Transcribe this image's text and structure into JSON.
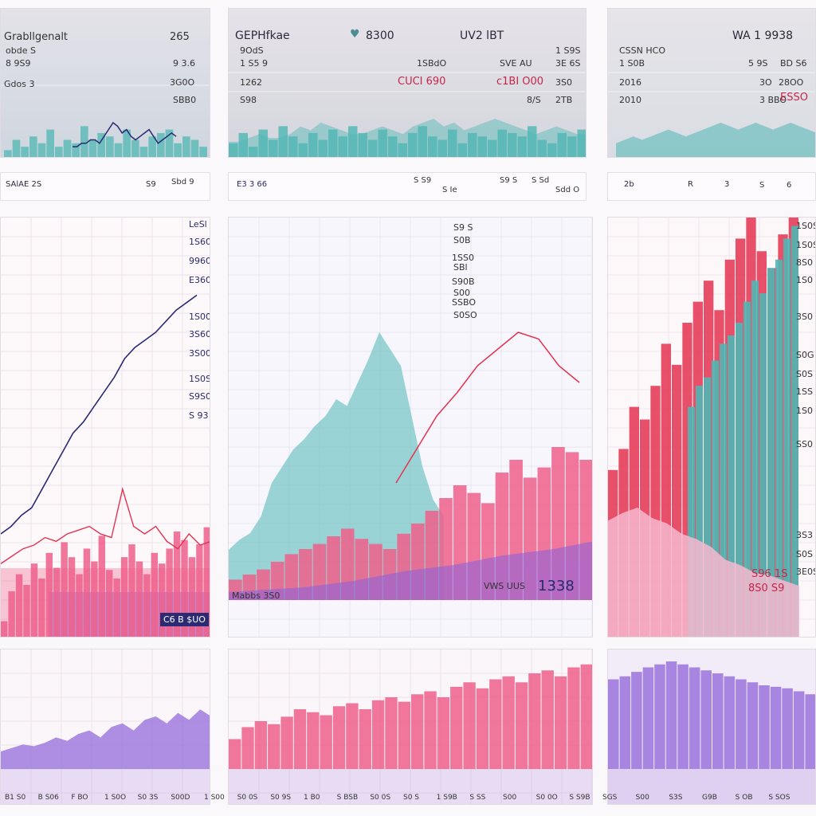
{
  "colors": {
    "teal": "#4fb7b4",
    "pink": "#ef5f8a",
    "red": "#e43350",
    "navy": "#2b2a72",
    "purple": "#8d63d8",
    "lavender": "#c5a8e8",
    "light_pink": "#f6b9cf"
  },
  "top_panels": [
    {
      "labels": [
        "Grabllgenalt",
        "265",
        "obde S",
        "8 9S9",
        "9 3.6",
        "Gdos 3",
        "3G0O",
        "SBB0"
      ]
    },
    {
      "labels": [
        "GEPHfkae",
        "8300",
        "UV2 lBT",
        "9OdS",
        "1 S5 9",
        "1 S9S",
        "1SBdO",
        "SVE AU",
        "3E 6S",
        "1262",
        "CUCI 690",
        "c1BI O00",
        "3S0",
        "S98",
        "8/S",
        "2TB"
      ]
    },
    {
      "labels": [
        "WA 1 9938",
        "CSSN HCO",
        "5 9S",
        "BD S6",
        "1 S0B",
        "3O",
        "28OO",
        "2016",
        "3 BBO",
        "2010",
        "ESSO"
      ]
    }
  ],
  "strips": [
    {
      "labels": [
        "SAlAE 2S",
        "S9",
        "Sbd 9"
      ]
    },
    {
      "labels": [
        "E3 3 66",
        "S S9",
        "S Ie",
        "S9 S",
        "S Sd",
        "Sdd O"
      ]
    },
    {
      "labels": [
        "2b",
        "R",
        "3",
        "S",
        "6"
      ]
    }
  ],
  "middle_panels": [
    {
      "labels": [
        "LeSl",
        "1S60",
        "9960",
        "E360",
        "1S00",
        "3S60",
        "3S00",
        "1S0S",
        "S9S0",
        "S 93"
      ],
      "footer": "C6 B $UO"
    },
    {
      "labels": [
        "S9 S",
        "S0B",
        "1SS0",
        "SBl",
        "S90B",
        "S00",
        "SSBO",
        "S0SO"
      ],
      "footer_left": "Mabbs 3S0",
      "footer_mid": "VWS UUS",
      "footer_big": "1338"
    },
    {
      "labels": [
        "1S0S",
        "1S0S",
        "8S0",
        "1S0",
        "3S0",
        "S0G",
        "S0S",
        "1SS",
        "1S0",
        "SS0",
        "3S3",
        "S0S",
        "3E0S"
      ],
      "footer": "S96 1S",
      "footer2": "8S0 S9"
    }
  ],
  "bottom_axis": [
    "B1 S0",
    "B S06",
    "F BO",
    "1 S0O",
    "S0 3S",
    "S00D",
    "1 S00",
    "S0 0S",
    "S0 9S",
    "1 B0",
    "S BSB",
    "S0 0S",
    "S0 S",
    "1 S9B",
    "S SS",
    "S00",
    "S0 0O",
    "S S9B",
    "SGS",
    "S00",
    "S3S",
    "G9B",
    "S OB",
    "S SOS"
  ],
  "chart_data": [
    {
      "type": "area",
      "panel": "top-left",
      "series": [
        {
          "values": [
            2,
            5,
            3,
            6,
            4,
            8,
            3,
            5,
            4,
            9,
            5,
            7,
            6,
            4,
            8,
            5,
            3,
            6,
            7,
            8,
            4,
            6,
            5,
            3
          ]
        },
        {
          "values": [
            3,
            3,
            4,
            4,
            5,
            5,
            4,
            6,
            8,
            10,
            9,
            7,
            8,
            6,
            5,
            6,
            7,
            8,
            6,
            4,
            5,
            6,
            7,
            6
          ]
        }
      ],
      "ylim": [
        0,
        20
      ]
    },
    {
      "type": "area",
      "panel": "top-middle",
      "series": [
        {
          "values": [
            4,
            7,
            3,
            8,
            5,
            9,
            6,
            4,
            7,
            5,
            8,
            6,
            9,
            7,
            5,
            8,
            6,
            4,
            7,
            9,
            6,
            5,
            8,
            4,
            7,
            6,
            5,
            8,
            7,
            6,
            9,
            5,
            4,
            7,
            6,
            8
          ]
        },
        {
          "values": [
            4,
            4,
            5,
            6,
            5,
            5,
            6,
            8,
            7,
            9,
            8,
            7,
            6,
            6,
            7,
            8,
            7,
            6,
            8,
            9,
            10,
            8,
            9,
            7,
            8,
            9,
            10,
            9,
            8,
            7,
            6,
            7,
            8,
            7,
            6,
            6
          ]
        }
      ],
      "ylim": [
        0,
        20
      ]
    },
    {
      "type": "area",
      "panel": "top-right",
      "series": [
        {
          "values": [
            4,
            5,
            6,
            5,
            6,
            7,
            8,
            7,
            6,
            7,
            8,
            9,
            10,
            9,
            8,
            9,
            10,
            9,
            8,
            9,
            10,
            9,
            8,
            7
          ]
        }
      ],
      "ylim": [
        0,
        20
      ]
    },
    {
      "type": "bar",
      "panel": "middle-left",
      "series": [
        {
          "name": "pink",
          "values": [
            8,
            22,
            30,
            25,
            35,
            28,
            40,
            33,
            45,
            38,
            30,
            42,
            36,
            48,
            32,
            28,
            38,
            44,
            36,
            30,
            40,
            35,
            42,
            50,
            46,
            38,
            44,
            52
          ]
        },
        {
          "name": "navy-line",
          "values": [
            28,
            30,
            33,
            35,
            40,
            45,
            50,
            55,
            58,
            62,
            66,
            70,
            75,
            78,
            80,
            82,
            85,
            88,
            90,
            92
          ]
        },
        {
          "name": "red-line",
          "values": [
            20,
            22,
            24,
            25,
            27,
            26,
            28,
            29,
            30,
            28,
            27,
            40,
            30,
            28,
            30,
            26,
            24,
            28,
            25,
            26
          ]
        }
      ],
      "ylim": [
        0,
        100
      ]
    },
    {
      "type": "area",
      "panel": "middle-center",
      "series": [
        {
          "name": "teal",
          "values": [
            15,
            18,
            20,
            25,
            35,
            40,
            45,
            48,
            52,
            55,
            60,
            58,
            65,
            72,
            80,
            75,
            70,
            55,
            40,
            30,
            25
          ]
        },
        {
          "name": "pink",
          "values": [
            8,
            10,
            12,
            15,
            18,
            20,
            22,
            25,
            28,
            24,
            22,
            20,
            26,
            30,
            35,
            40,
            45,
            42,
            38,
            50,
            55,
            48,
            52,
            60,
            58,
            55
          ]
        },
        {
          "name": "purple",
          "values": [
            5,
            6,
            7,
            8,
            10,
            12,
            15,
            18,
            20,
            22,
            25,
            28,
            30,
            32,
            35,
            38
          ]
        },
        {
          "name": "red-line",
          "values": [
            35,
            45,
            55,
            62,
            70,
            75,
            80,
            78,
            70,
            65
          ]
        }
      ],
      "ylim": [
        0,
        100
      ]
    },
    {
      "type": "bar",
      "panel": "middle-right",
      "series": [
        {
          "name": "red",
          "values": [
            40,
            45,
            55,
            52,
            60,
            70,
            65,
            75,
            80,
            85,
            78,
            90,
            95,
            100,
            92,
            88,
            96,
            100
          ]
        },
        {
          "name": "teal",
          "values": [
            55,
            60,
            62,
            66,
            70,
            72,
            75,
            80,
            85,
            82,
            88,
            90,
            95,
            98
          ]
        },
        {
          "name": "light-pink",
          "values": [
            45,
            48,
            50,
            46,
            44,
            40,
            38,
            35,
            30,
            28,
            25,
            24,
            22,
            20
          ]
        }
      ],
      "ylim": [
        0,
        100
      ]
    },
    {
      "type": "area",
      "panel": "bottom-left",
      "series": [
        {
          "values": [
            10,
            12,
            14,
            13,
            15,
            18,
            16,
            20,
            22,
            18,
            24,
            26,
            22,
            28,
            30,
            26,
            32,
            28,
            34,
            30
          ]
        }
      ],
      "ylim": [
        0,
        50
      ]
    },
    {
      "type": "bar",
      "panel": "bottom-center",
      "series": [
        {
          "values": [
            20,
            28,
            32,
            30,
            35,
            40,
            38,
            36,
            42,
            44,
            40,
            46,
            48,
            45,
            50,
            52,
            48,
            55,
            58,
            54,
            60,
            62,
            58,
            64,
            66,
            62,
            68,
            70
          ]
        }
      ],
      "ylim": [
        0,
        80
      ]
    },
    {
      "type": "bar",
      "panel": "bottom-right",
      "series": [
        {
          "values": [
            60,
            62,
            65,
            68,
            70,
            72,
            70,
            68,
            66,
            64,
            62,
            60,
            58,
            56,
            55,
            54,
            52,
            50
          ]
        }
      ],
      "ylim": [
        0,
        80
      ]
    }
  ]
}
